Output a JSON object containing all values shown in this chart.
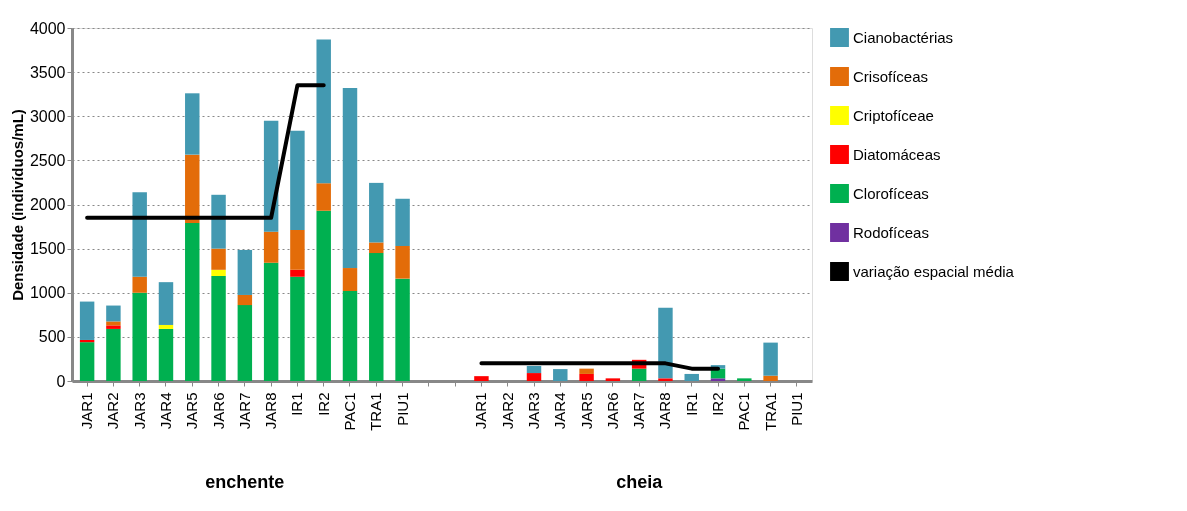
{
  "chart_data": {
    "type": "bar",
    "stacked": true,
    "ylabel": "Densidade (indivíduos/mL)",
    "categories": [
      "JAR1",
      "JAR2",
      "JAR3",
      "JAR4",
      "JAR5",
      "JAR6",
      "JAR7",
      "JAR8",
      "IR1",
      "IR2",
      "PAC1",
      "TRA1",
      "PIU1",
      null,
      null,
      "JAR1",
      "JAR2",
      "JAR3",
      "JAR4",
      "JAR5",
      "JAR6",
      "JAR7",
      "JAR8",
      "IR1",
      "IR2",
      "PAC1",
      "TRA1",
      "PIU1"
    ],
    "series": [
      {
        "name": "Rodofíceas",
        "color": "#7030a0",
        "values": [
          0,
          0,
          0,
          0,
          0,
          0,
          0,
          0,
          0,
          0,
          0,
          0,
          0,
          null,
          null,
          0,
          0,
          0,
          0,
          0,
          0,
          0,
          0,
          0,
          30,
          0,
          0,
          0
        ]
      },
      {
        "name": "Clorofíceas",
        "color": "#00b050",
        "values": [
          440,
          590,
          1000,
          590,
          1790,
          1190,
          860,
          1340,
          1180,
          1930,
          1020,
          1450,
          1160,
          null,
          null,
          0,
          0,
          0,
          0,
          0,
          0,
          140,
          0,
          0,
          110,
          30,
          0,
          0
        ]
      },
      {
        "name": "Diatomáceas",
        "color": "#ff0000",
        "values": [
          25,
          40,
          0,
          0,
          0,
          0,
          0,
          0,
          80,
          0,
          0,
          0,
          0,
          null,
          null,
          55,
          0,
          90,
          0,
          80,
          30,
          100,
          30,
          0,
          0,
          0,
          0,
          0
        ]
      },
      {
        "name": "Criptofíceae",
        "color": "#ffff00",
        "values": [
          0,
          0,
          0,
          45,
          0,
          70,
          0,
          0,
          0,
          0,
          0,
          0,
          0,
          null,
          null,
          0,
          0,
          0,
          0,
          0,
          0,
          0,
          0,
          0,
          0,
          0,
          0,
          0
        ]
      },
      {
        "name": "Crisofíceas",
        "color": "#e36c09",
        "values": [
          0,
          45,
          180,
          0,
          775,
          240,
          115,
          350,
          450,
          310,
          260,
          120,
          370,
          null,
          null,
          0,
          0,
          0,
          0,
          60,
          0,
          0,
          0,
          0,
          0,
          0,
          60,
          0
        ]
      },
      {
        "name": "Cianobactérias",
        "color": "#4399b1",
        "values": [
          435,
          180,
          960,
          485,
          695,
          610,
          510,
          1260,
          1125,
          1630,
          2040,
          675,
          535,
          null,
          null,
          0,
          0,
          80,
          135,
          0,
          0,
          0,
          800,
          80,
          40,
          0,
          375,
          0
        ]
      },
      {
        "name": "variação espacial média",
        "type": "line",
        "color": "#000000",
        "values": [
          1850,
          1850,
          1850,
          1850,
          1850,
          1850,
          1850,
          1850,
          3350,
          3350,
          null,
          null,
          null,
          null,
          null,
          200,
          200,
          200,
          200,
          200,
          200,
          200,
          200,
          140,
          140,
          null,
          null,
          null
        ]
      }
    ],
    "annotations": [
      "enchente",
      "cheia"
    ],
    "ylim": [
      0,
      4000
    ],
    "yticks": [
      0,
      500,
      1000,
      1500,
      2000,
      2500,
      3000,
      3500,
      4000
    ],
    "grid": "y",
    "legend": "right"
  }
}
